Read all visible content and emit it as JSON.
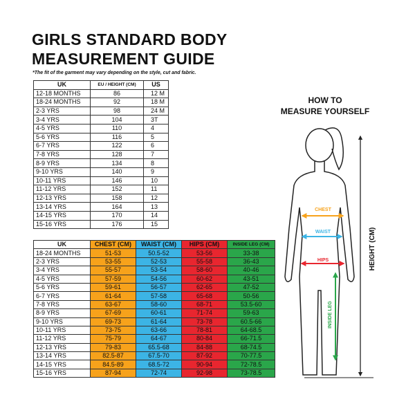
{
  "title": [
    "GIRLS STANDARD BODY",
    "MEASUREMENT GUIDE"
  ],
  "note": "*The fit of the garment may vary depending on the style, cut and fabric.",
  "table1": {
    "header": [
      "UK",
      "EU / HEIGHT (CM)",
      "US"
    ],
    "rows": [
      [
        "12-18 MONTHS",
        "86",
        "12 M"
      ],
      [
        "18-24 MONTHS",
        "92",
        "18 M"
      ],
      [
        "2-3 YRS",
        "98",
        "24 M"
      ],
      [
        "3-4 YRS",
        "104",
        "3T"
      ],
      [
        "4-5 YRS",
        "110",
        "4"
      ],
      [
        "5-6 YRS",
        "116",
        "5"
      ],
      [
        "6-7 YRS",
        "122",
        "6"
      ],
      [
        "7-8 YRS",
        "128",
        "7"
      ],
      [
        "8-9 YRS",
        "134",
        "8"
      ],
      [
        "9-10 YRS",
        "140",
        "9"
      ],
      [
        "10-11 YRS",
        "146",
        "10"
      ],
      [
        "11-12 YRS",
        "152",
        "11"
      ],
      [
        "12-13 YRS",
        "158",
        "12"
      ],
      [
        "13-14 YRS",
        "164",
        "13"
      ],
      [
        "14-15 YRS",
        "170",
        "14"
      ],
      [
        "15-16 YRS",
        "176",
        "15"
      ]
    ]
  },
  "table2": {
    "header": [
      "UK",
      "CHEST (CM)",
      "WAIST (CM)",
      "HIPS (CM)",
      "INSIDE LEG (CM)"
    ],
    "rows": [
      [
        "18-24 MONTHS",
        "51-53",
        "50.5-52",
        "53-56",
        "33-38"
      ],
      [
        "2-3 YRS",
        "53-55",
        "52-53",
        "55-58",
        "36-43"
      ],
      [
        "3-4 YRS",
        "55-57",
        "53-54",
        "58-60",
        "40-46"
      ],
      [
        "4-5 YRS",
        "57-59",
        "54-56",
        "60-62",
        "43-51"
      ],
      [
        "5-6 YRS",
        "59-61",
        "56-57",
        "62-65",
        "47-52"
      ],
      [
        "6-7 YRS",
        "61-64",
        "57-58",
        "65-68",
        "50-56"
      ],
      [
        "7-8 YRS",
        "63-67",
        "58-60",
        "68-71",
        "53.5-60"
      ],
      [
        "8-9 YRS",
        "67-69",
        "60-61",
        "71-74",
        "59-63"
      ],
      [
        "9-10 YRS",
        "69-73",
        "61-64",
        "73-78",
        "60.5-66"
      ],
      [
        "10-11 YRS",
        "73-75",
        "63-66",
        "78-81",
        "64-68.5"
      ],
      [
        "11-12 YRS",
        "75-79",
        "64-67",
        "80-84",
        "66-71.5"
      ],
      [
        "12-13 YRS",
        "79-83",
        "65.5-68",
        "84-88",
        "68-74.5"
      ],
      [
        "13-14 YRS",
        "82.5-87",
        "67.5-70",
        "87-92",
        "70-77.5"
      ],
      [
        "14-15 YRS",
        "84.5-89",
        "68.5-72",
        "90-94",
        "72-78.5"
      ],
      [
        "15-16 YRS",
        "87-94",
        "72-74",
        "92-98",
        "73-78.5"
      ]
    ]
  },
  "howto": [
    "HOW TO",
    "MEASURE YOURSELF"
  ],
  "labels": {
    "chest": "CHEST",
    "waist": "WAIST",
    "hips": "HIPS",
    "inside_leg": "INSIDE LEG",
    "height": "HEIGHT (CM)"
  }
}
